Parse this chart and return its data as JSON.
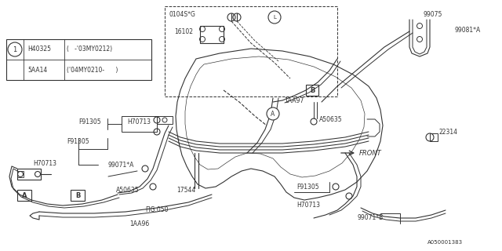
{
  "bg_color": "#ffffff",
  "lc": "#333333",
  "lw": 0.8,
  "fig_width": 6.4,
  "fig_height": 3.2,
  "part_number": "A050001383",
  "legend": {
    "row1_col1": "H40325",
    "row1_col2": "( -’03MY0212)",
    "row2_col1": "5AA14",
    "row2_col2": "(’04MY0210-    )"
  }
}
